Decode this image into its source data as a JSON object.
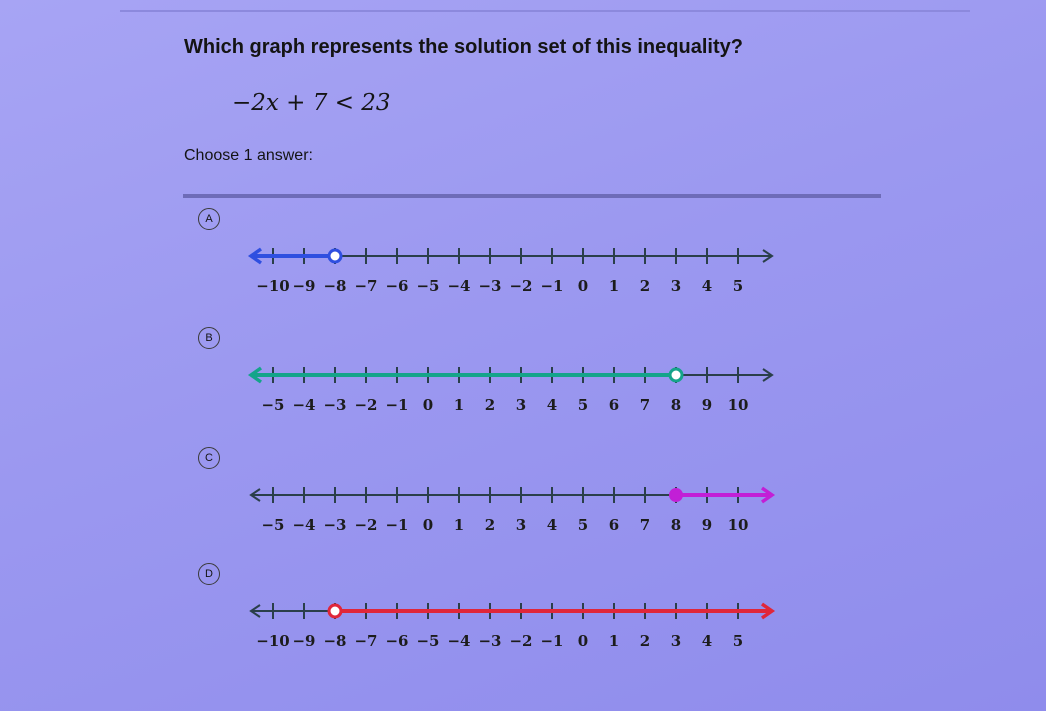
{
  "question": "Which graph represents the solution set of this inequality?",
  "inequality": "−2x + 7 < 23",
  "choose_label": "Choose 1 answer:",
  "choices": [
    {
      "letter": "A",
      "ticks": [
        -10,
        -9,
        -8,
        -7,
        -6,
        -5,
        -4,
        -3,
        -2,
        -1,
        0,
        1,
        2,
        3,
        4,
        5
      ],
      "tick_labels": [
        "−10",
        "−9",
        "−8",
        "−7",
        "−6",
        "−5",
        "−4",
        "−3",
        "−2",
        "−1",
        "0",
        "1",
        "2",
        "3",
        "4",
        "5"
      ],
      "point": -8,
      "point_type": "open",
      "direction": "left",
      "color": "#2f4fe0"
    },
    {
      "letter": "B",
      "ticks": [
        -5,
        -4,
        -3,
        -2,
        -1,
        0,
        1,
        2,
        3,
        4,
        5,
        6,
        7,
        8,
        9,
        10
      ],
      "tick_labels": [
        "−5",
        "−4",
        "−3",
        "−2",
        "−1",
        "0",
        "1",
        "2",
        "3",
        "4",
        "5",
        "6",
        "7",
        "8",
        "9",
        "10"
      ],
      "point": 8,
      "point_type": "open",
      "direction": "left",
      "color": "#14a48a"
    },
    {
      "letter": "C",
      "ticks": [
        -5,
        -4,
        -3,
        -2,
        -1,
        0,
        1,
        2,
        3,
        4,
        5,
        6,
        7,
        8,
        9,
        10
      ],
      "tick_labels": [
        "−5",
        "−4",
        "−3",
        "−2",
        "−1",
        "0",
        "1",
        "2",
        "3",
        "4",
        "5",
        "6",
        "7",
        "8",
        "9",
        "10"
      ],
      "point": 8,
      "point_type": "closed",
      "direction": "right",
      "color": "#c21fd6"
    },
    {
      "letter": "D",
      "ticks": [
        -10,
        -9,
        -8,
        -7,
        -6,
        -5,
        -4,
        -3,
        -2,
        -1,
        0,
        1,
        2,
        3,
        4,
        5
      ],
      "tick_labels": [
        "−10",
        "−9",
        "−8",
        "−7",
        "−6",
        "−5",
        "−4",
        "−3",
        "−2",
        "−1",
        "0",
        "1",
        "2",
        "3",
        "4",
        "5"
      ],
      "point": -8,
      "point_type": "open",
      "direction": "right",
      "color": "#e0263a"
    }
  ]
}
